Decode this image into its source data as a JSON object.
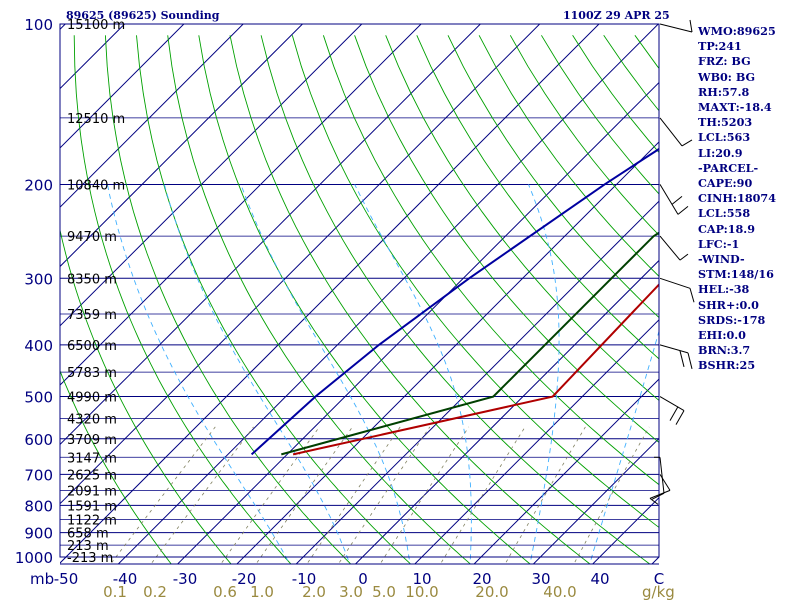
{
  "header": {
    "station": "89625 (89625) Sounding",
    "time": "1100Z 29 APR 25"
  },
  "panel": {
    "items": [
      "WMO:89625",
      "TP:241",
      "FRZ: BG",
      "WB0: BG",
      "RH:57.8",
      "MAXT:-18.4",
      "TH:5203",
      "LCL:563",
      "LI:20.9",
      "-PARCEL-",
      "CAPE:90",
      "CINH:18074",
      "LCL:558",
      "CAP:18.9",
      "LFC:-1",
      "-WIND-",
      "STM:148/16",
      "HEL:-38",
      "SHR+:0.0",
      "SRDS:-178",
      "EHI:0.0",
      "BRN:3.7",
      "BSHR:25"
    ]
  },
  "chart_data": {
    "type": "line",
    "chart_kind": "Skew-T log-P sounding",
    "y_axis": {
      "label": "mb",
      "scale": "log",
      "range": [
        1000,
        100
      ],
      "ticks": [
        100,
        200,
        300,
        400,
        500,
        600,
        700,
        800,
        900,
        1000
      ]
    },
    "x_axis": {
      "unit": "C",
      "range": [
        -50,
        50
      ],
      "ticks": [
        "-50",
        "-40",
        "-30",
        "-20",
        "-10",
        "0",
        "10",
        "20",
        "30",
        "40"
      ]
    },
    "mixing_ratio_axis": {
      "unit": "g/kg",
      "labels": [
        "0.1",
        "0.2",
        "0.6",
        "1.0",
        "2.0",
        "3.0",
        "5.0",
        "10.0",
        "20.0",
        "40.0"
      ]
    },
    "height_labels": [
      {
        "p": 100,
        "label": "15100 m"
      },
      {
        "p": 150,
        "label": "12510 m"
      },
      {
        "p": 200,
        "label": "10840 m"
      },
      {
        "p": 250,
        "label": "9470 m"
      },
      {
        "p": 300,
        "label": "8350 m"
      },
      {
        "p": 350,
        "label": "7359 m"
      },
      {
        "p": 400,
        "label": "6500 m"
      },
      {
        "p": 450,
        "label": "5783 m"
      },
      {
        "p": 500,
        "label": "4990 m"
      },
      {
        "p": 550,
        "label": "4320 m"
      },
      {
        "p": 600,
        "label": "3709 m"
      },
      {
        "p": 650,
        "label": "3147 m"
      },
      {
        "p": 700,
        "label": "2625 m"
      },
      {
        "p": 750,
        "label": "2091 m"
      },
      {
        "p": 800,
        "label": "1591 m"
      },
      {
        "p": 850,
        "label": "1122 m"
      },
      {
        "p": 900,
        "label": "658 m"
      },
      {
        "p": 950,
        "label": "213 m"
      },
      {
        "p": 1000,
        "label": "-213 m"
      }
    ],
    "series": [
      {
        "role": "temperature",
        "color": "#b00000",
        "points": [
          [
            642,
            -29
          ],
          [
            500,
            5
          ],
          [
            300,
            4
          ],
          [
            250,
            7
          ],
          [
            200,
            27
          ],
          [
            150,
            49
          ],
          [
            100,
            72
          ]
        ]
      },
      {
        "role": "dewpoint",
        "color": "#004000",
        "points": [
          [
            642,
            -31
          ],
          [
            500,
            -5
          ],
          [
            300,
            -5
          ],
          [
            250,
            -5
          ],
          [
            200,
            0
          ],
          [
            100,
            22
          ]
        ]
      },
      {
        "role": "parcel",
        "color": "#0000a0",
        "points": [
          [
            642,
            -36
          ],
          [
            500,
            -35
          ],
          [
            400,
            -33
          ],
          [
            300,
            -29
          ],
          [
            200,
            -22
          ],
          [
            150,
            -16
          ],
          [
            100,
            -3
          ]
        ]
      }
    ],
    "wind_barbs": [
      {
        "p": 100
      },
      {
        "p": 150
      },
      {
        "p": 200
      },
      {
        "p": 250
      },
      {
        "p": 300
      },
      {
        "p": 400
      },
      {
        "p": 500
      },
      {
        "p": 650
      },
      {
        "p": 700
      }
    ],
    "colors": {
      "frame": "#000080",
      "isotherm": "#000080",
      "dry_adiabat": "#00a000",
      "moist_adiabat": "#40b0ff",
      "mixing_ratio": "#808060",
      "mixing_label": "#9a8a40"
    }
  }
}
